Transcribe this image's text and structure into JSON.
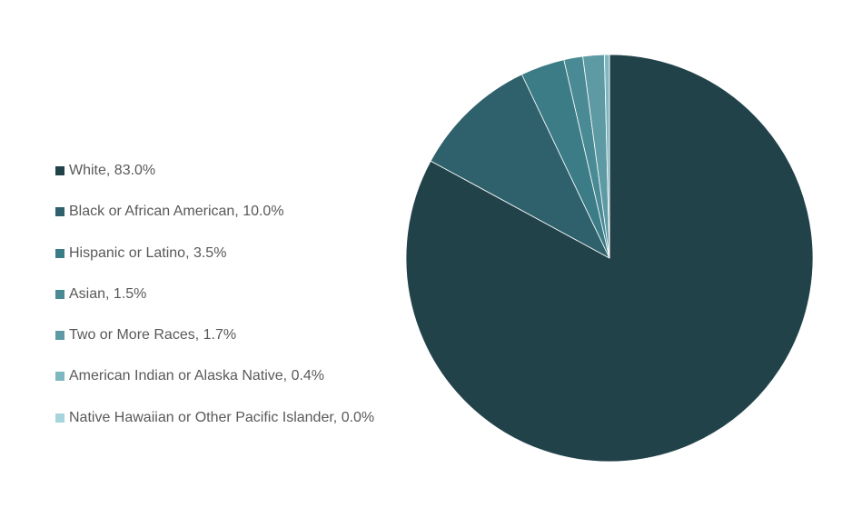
{
  "chart_data": {
    "type": "pie",
    "title": "",
    "legend_position": "left",
    "start_angle_deg": 0,
    "direction": "clockwise",
    "categories": [
      "White",
      "Black or African American",
      "Hispanic or Latino",
      "Asian",
      "Two or More Races",
      "American Indian or Alaska Native",
      "Native Hawaiian or Other Pacific Islander"
    ],
    "values": [
      83.0,
      10.0,
      3.5,
      1.5,
      1.7,
      0.4,
      0.0
    ],
    "value_unit": "%",
    "labels": [
      "White, 83.0%",
      "Black or African American, 10.0%",
      "Hispanic or Latino, 3.5%",
      "Asian, 1.5%",
      "Two or More Races, 1.7%",
      "American Indian or Alaska Native, 0.4%",
      "Native Hawaiian or Other Pacific Islander, 0.0%"
    ],
    "colors": [
      "#22424a",
      "#2e616c",
      "#3b7c87",
      "#4a8a95",
      "#5e9aa4",
      "#7fb7c1",
      "#a8d4dc"
    ]
  }
}
